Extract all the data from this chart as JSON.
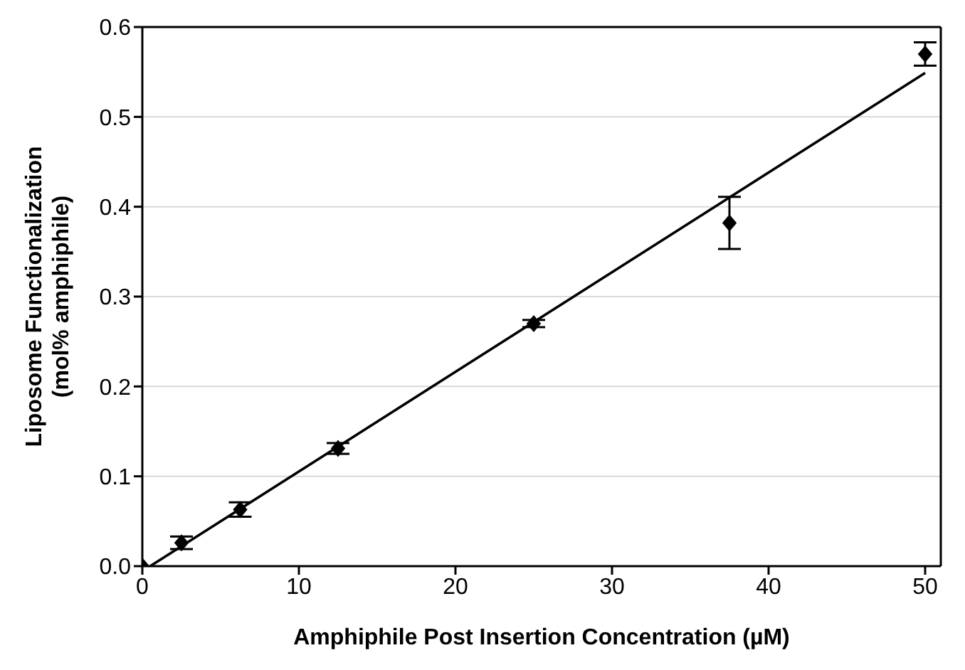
{
  "chart_data": {
    "type": "scatter",
    "xlabel": "Amphiphile Post Insertion Concentration (µM)",
    "ylabel": "Liposome Functionalization\n(mol% amphiphile)",
    "xlim": [
      0,
      51
    ],
    "xticks": [
      0,
      10,
      20,
      30,
      40,
      50
    ],
    "ylim": [
      0,
      0.6
    ],
    "yticks": [
      {
        "value": 0,
        "label": "0.0"
      },
      0.1,
      0.2,
      0.3,
      0.4,
      0.5,
      0.6
    ],
    "grid": "y",
    "marker": "diamond",
    "series": [
      {
        "color": "#000000",
        "x": [
          0,
          2.5,
          6.25,
          12.5,
          25,
          37.5,
          50
        ],
        "values": [
          0,
          0.026,
          0.063,
          0.131,
          0.27,
          0.382,
          0.57
        ],
        "errors": [
          null,
          0.007,
          0.008,
          0.006,
          0.004,
          0.029,
          0.013
        ]
      },
      {
        "type": "line",
        "color": "#000000",
        "x": [
          0.5,
          50
        ],
        "values": [
          0,
          0.549
        ],
        "marker": "none",
        "line_style": "solid"
      }
    ]
  }
}
